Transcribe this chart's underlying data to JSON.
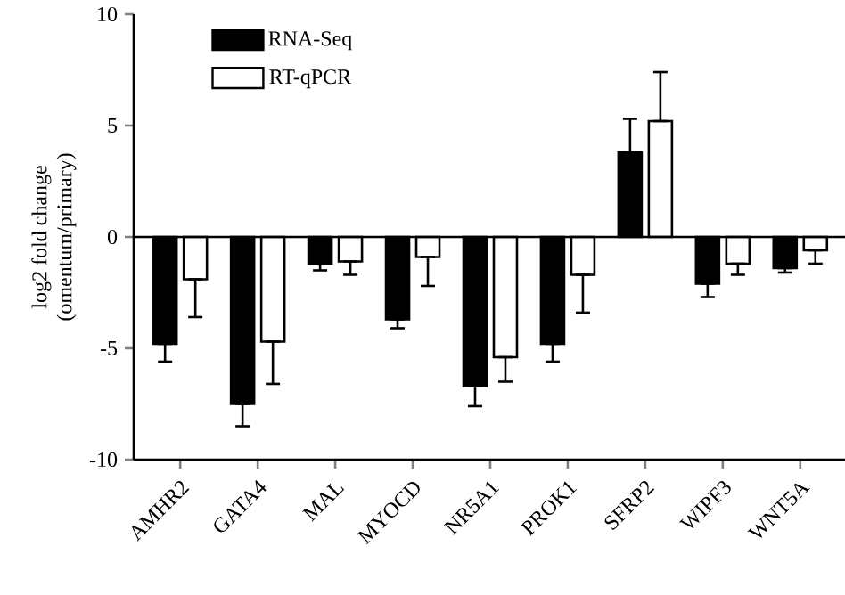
{
  "chart_data": {
    "type": "bar",
    "ylabel": "log2 fold change\n(omentum/primary)",
    "categories": [
      "AMHR2",
      "GATA4",
      "MAL",
      "MYOCD",
      "NR5A1",
      "PROK1",
      "SFRP2",
      "WIPF3",
      "WNT5A"
    ],
    "series": [
      {
        "name": "RNA-Seq",
        "color": "#000000",
        "values": [
          -4.8,
          -7.5,
          -1.2,
          -3.7,
          -6.7,
          -4.8,
          3.8,
          -2.1,
          -1.4
        ],
        "errors": [
          0.8,
          1.0,
          0.3,
          0.4,
          0.9,
          0.8,
          1.5,
          0.6,
          0.2
        ]
      },
      {
        "name": "RT-qPCR",
        "color": "#ffffff",
        "values": [
          -1.9,
          -4.7,
          -1.1,
          -0.9,
          -5.4,
          -1.7,
          5.2,
          -1.2,
          -0.6
        ],
        "errors": [
          1.7,
          1.9,
          0.6,
          1.3,
          1.1,
          1.7,
          2.2,
          0.5,
          0.6
        ]
      }
    ],
    "ylim": [
      -10,
      10
    ],
    "yticks": [
      -10,
      -5,
      0,
      5,
      10
    ],
    "ref_lines": [
      {
        "axis": "y",
        "value": 0
      }
    ],
    "legend": "top left",
    "grid": false
  }
}
